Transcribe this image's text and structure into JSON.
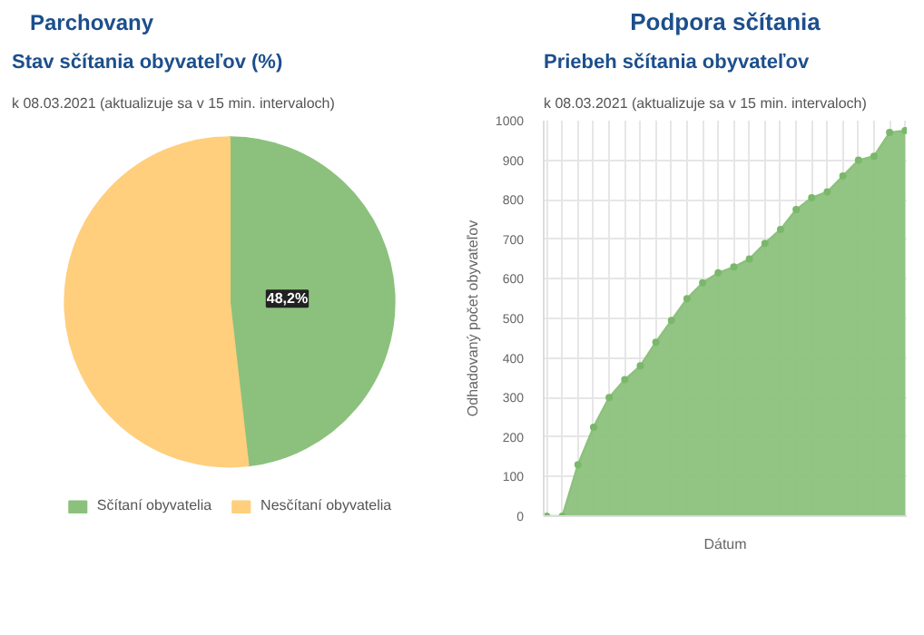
{
  "chart_data": [
    {
      "type": "pie",
      "title": "Stav sčítania obyvateľov (%)",
      "subtitle": "k 08.03.2021 (aktualizuje sa v 15 min. intervaloch)",
      "annotations": [
        "Podpora sčítania",
        "Parchovany"
      ],
      "categories": [
        "Sčítaní obyvatelia",
        "Nesčítaní obyvatelia"
      ],
      "values": [
        48.2,
        51.8
      ],
      "colors": [
        "#8cc17d",
        "#ffcf7d"
      ],
      "value_labels": [
        "48,2%",
        null
      ],
      "legend": "bottom"
    },
    {
      "type": "area",
      "title": "Priebeh sčítania obyvateľov",
      "subtitle": "k 08.03.2021 (aktualizuje sa v 15 min. intervaloch)",
      "xlabel": "Dátum",
      "ylabel": "Odhadovaný počet obyvateľov",
      "categories": [
        null,
        null,
        null,
        null,
        null,
        null,
        null,
        null,
        null,
        null,
        null,
        null,
        null,
        null,
        null,
        null,
        null,
        null,
        null,
        null,
        null,
        null,
        null,
        null
      ],
      "series": [
        {
          "color": "#8cc17d",
          "values": [
            0,
            0,
            130,
            225,
            300,
            345,
            380,
            440,
            495,
            550,
            590,
            615,
            630,
            650,
            690,
            725,
            775,
            805,
            820,
            860,
            900,
            910,
            970,
            975
          ]
        }
      ],
      "ylim": [
        0,
        1000
      ],
      "yticks": [
        0,
        100,
        200,
        300,
        400,
        500,
        600,
        700,
        800,
        900,
        1000
      ],
      "grid": true,
      "marker": "circle"
    }
  ]
}
